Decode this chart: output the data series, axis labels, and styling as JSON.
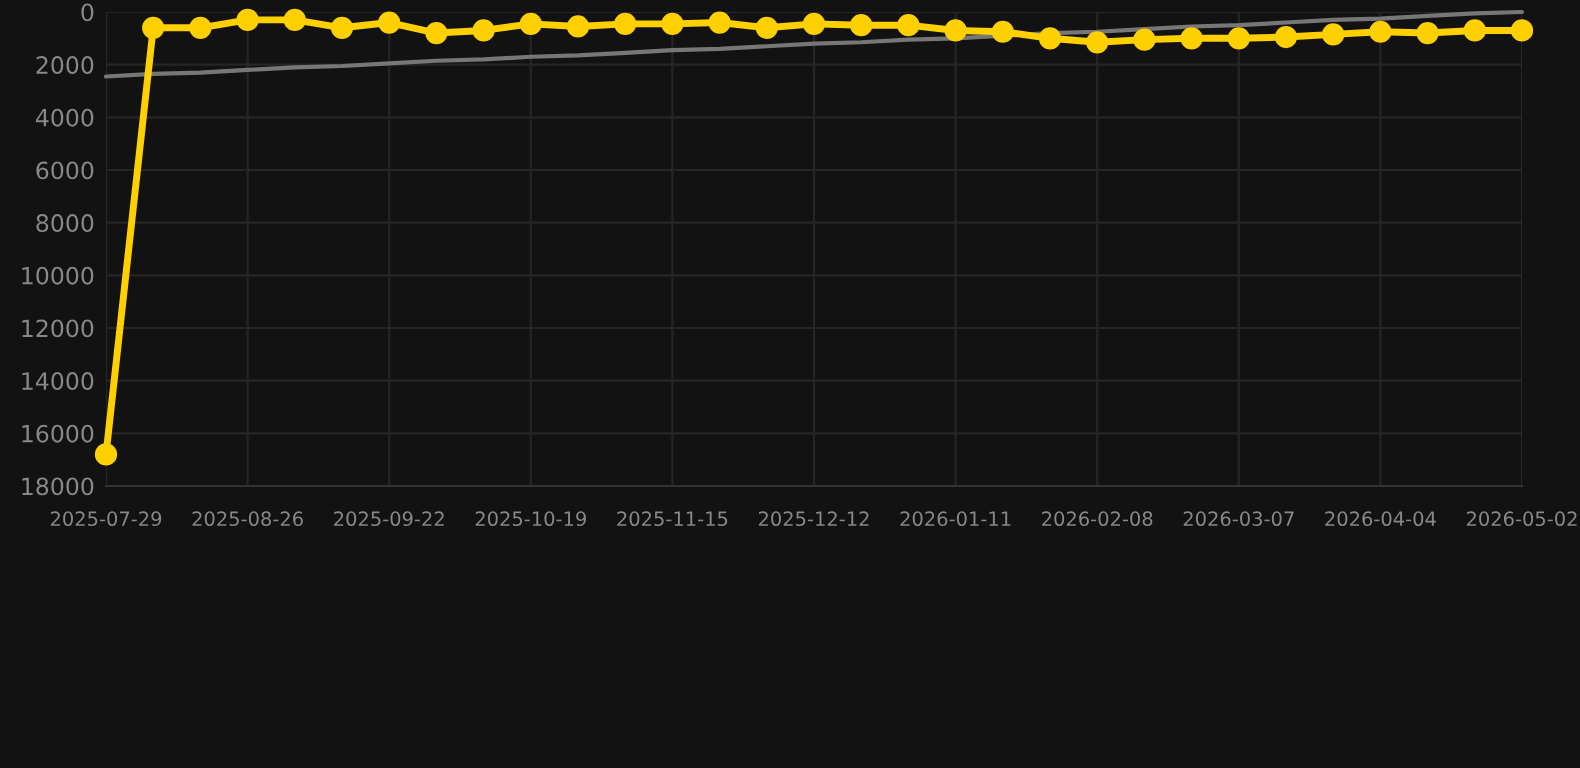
{
  "chart_data": {
    "type": "line",
    "categories": [
      "2025-07-29",
      null,
      null,
      "2025-08-26",
      null,
      null,
      "2025-09-22",
      null,
      null,
      "2025-10-19",
      null,
      null,
      "2025-11-15",
      null,
      null,
      "2025-12-12",
      null,
      null,
      "2026-01-11",
      null,
      null,
      "2026-02-08",
      null,
      null,
      "2026-03-07",
      null,
      null,
      "2026-04-04",
      null,
      null,
      "2026-05-02"
    ],
    "series": [
      {
        "color": "#ffd000",
        "marker": "circle",
        "values": [
          16800,
          600,
          600,
          300,
          300,
          600,
          400,
          800,
          700,
          450,
          550,
          450,
          450,
          400,
          600,
          450,
          500,
          500,
          700,
          750,
          1000,
          1150,
          1050,
          1000,
          1000,
          950,
          850,
          750,
          800,
          700,
          700
        ]
      },
      {
        "type": "line",
        "color": "#777777",
        "marker": "none",
        "values": [
          2450,
          2350,
          2300,
          2200,
          2100,
          2050,
          1950,
          1850,
          1800,
          1700,
          1650,
          1550,
          1450,
          1400,
          1300,
          1200,
          1150,
          1050,
          1000,
          900,
          800,
          750,
          650,
          550,
          500,
          400,
          300,
          250,
          150,
          50,
          0
        ]
      }
    ],
    "ylim": [
      18000,
      0
    ],
    "yticks": [
      0,
      2000,
      4000,
      6000,
      8000,
      10000,
      12000,
      14000,
      16000,
      18000
    ],
    "grid": true,
    "line_style": "solid"
  }
}
